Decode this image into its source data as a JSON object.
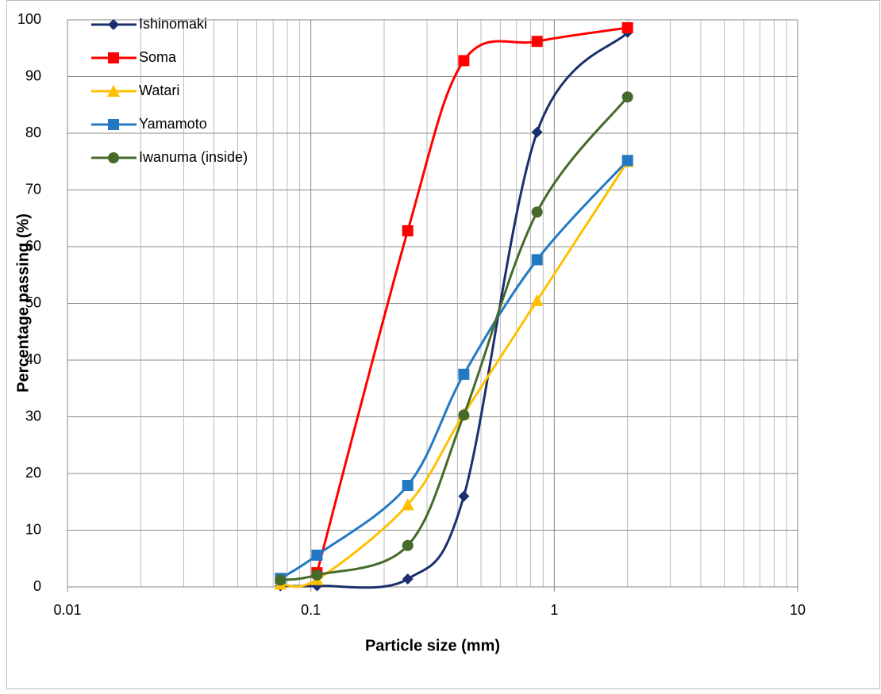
{
  "chart_data": {
    "type": "line",
    "x_label": "Particle size (mm)",
    "y_label": "Percentage passing (%)",
    "x": [
      0.075,
      0.106,
      0.25,
      0.425,
      0.85,
      2.0
    ],
    "xlim": [
      0.01,
      10
    ],
    "xticks": [
      0.01,
      0.1,
      1,
      10
    ],
    "xlog": true,
    "minor_grid": true,
    "ylim": [
      0,
      100
    ],
    "yticks": [
      0,
      10,
      20,
      30,
      40,
      50,
      60,
      70,
      80,
      90,
      100
    ],
    "grid": true,
    "legend": "top-left",
    "smooth": true,
    "series": [
      {
        "name": "Ishinomaki",
        "color": "#1b2f6e",
        "marker": "diamond",
        "values": [
          0.2,
          0.2,
          1.4,
          16,
          80.2,
          97.8
        ]
      },
      {
        "name": "Soma",
        "color": "#ff0000",
        "marker": "square",
        "values": [
          null,
          2.5,
          62.8,
          92.8,
          96.2,
          98.6
        ]
      },
      {
        "name": "Watari",
        "color": "#ffc000",
        "marker": "triangle",
        "values": [
          0.5,
          1.3,
          14.5,
          30.5,
          50.5,
          75
        ]
      },
      {
        "name": "Yamamoto",
        "color": "#2378c3",
        "marker": "square",
        "values": [
          1.5,
          5.6,
          17.9,
          37.5,
          57.7,
          75.2
        ]
      },
      {
        "name": "Iwanuma (inside)",
        "color": "#456a2a",
        "marker": "circle",
        "values": [
          1.2,
          2.1,
          7.3,
          30.3,
          66.1,
          86.4
        ]
      }
    ]
  }
}
